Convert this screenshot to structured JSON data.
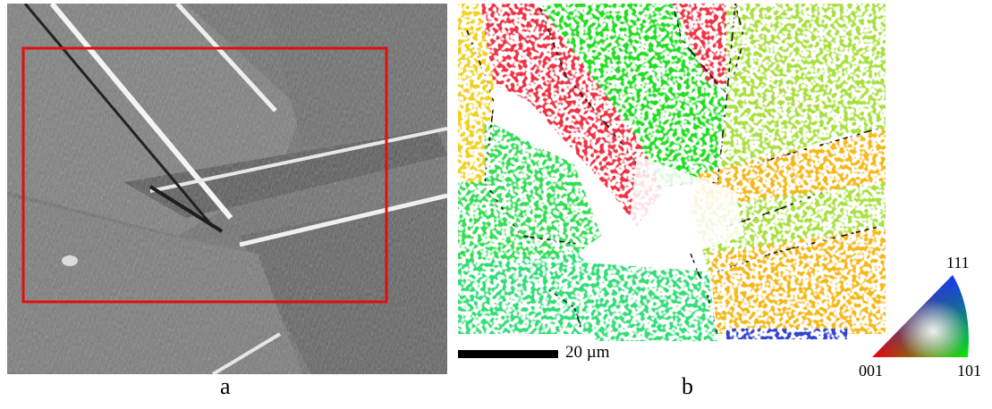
{
  "figure": {
    "panel_a_label": "a",
    "panel_b_label": "b",
    "scale_bar_label": "20 µm",
    "orientation_key": {
      "corner_top": "111",
      "corner_left": "001",
      "corner_right": "101"
    }
  },
  "colors": {
    "roi_box": "#e01010",
    "grain_green": "#22dd22",
    "grain_red": "#ee3344",
    "grain_yellow": "#f0d020",
    "grain_orange": "#f5b818",
    "grain_lime": "#a8e040",
    "grain_mint": "#33dd77",
    "grain_blue": "#3344cc",
    "boundary": "#111111"
  }
}
